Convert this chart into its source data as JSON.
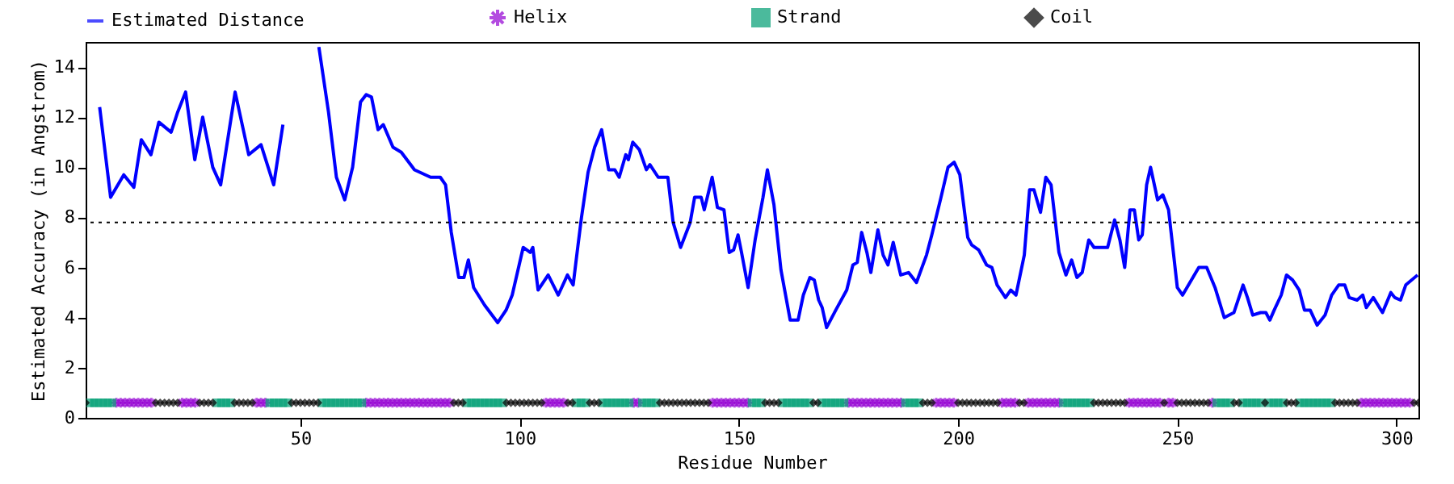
{
  "chart_data": {
    "type": "line",
    "xlabel": "Residue Number",
    "ylabel": "Estimated Accuracy (in Angstrom)",
    "xlim": [
      1,
      305
    ],
    "xticks": [
      50,
      100,
      150,
      200,
      250,
      300
    ],
    "ylim": [
      0,
      15
    ],
    "yticks": [
      0,
      2,
      4,
      6,
      8,
      10,
      12,
      14
    ],
    "grid": false,
    "legend": "top",
    "ref_lines": [
      {
        "axis": "y",
        "value": 7.8,
        "color": "#000000",
        "line_style": "dotted"
      }
    ],
    "series": [
      {
        "name": "Estimated Distance",
        "type": "line",
        "color": "#0000ff",
        "marker": "none",
        "x": [
          4.2,
          6.7,
          9.7,
          12,
          13.7,
          15.9,
          17.7,
          20.5,
          22,
          23.8,
          25.9,
          27.7,
          30,
          31.8,
          35.1,
          38.2,
          41,
          43.9,
          46,
          51,
          54.2,
          56.4,
          58.2,
          60.1,
          61.9,
          63.7,
          65,
          66.2,
          67.7,
          68.9,
          71.1,
          73,
          76,
          79.7,
          81.9,
          83.1,
          84.4,
          86.1,
          87.3,
          88.3,
          89.5,
          92,
          95,
          96.9,
          98.3,
          100.8,
          102.4,
          103,
          104.2,
          106.5,
          108.8,
          110.9,
          112.2,
          113.1,
          114.1,
          115.6,
          117.1,
          118.7,
          120.3,
          121.7,
          122.7,
          124.2,
          124.8,
          125.8,
          127.3,
          128.9,
          129.7,
          131.6,
          133.8,
          135,
          136.7,
          138.9,
          139.9,
          141.4,
          142.1,
          143.9,
          145.1,
          146.6,
          147.8,
          148.8,
          149.8,
          150.6,
          152.1,
          153.7,
          155.5,
          156.5,
          158,
          159.6,
          161.7,
          163.5,
          164.7,
          166.2,
          167.2,
          168.2,
          169,
          170,
          172.1,
          174.6,
          176,
          177,
          178,
          179.2,
          180.1,
          181.7,
          182.9,
          184,
          185.2,
          186.9,
          188.7,
          190.5,
          192.8,
          194,
          196.1,
          197.7,
          199.1,
          200.4,
          202.2,
          203.1,
          204.7,
          206.5,
          207.7,
          208.9,
          210.8,
          212,
          213.2,
          215.1,
          216.3,
          217.3,
          218.8,
          220,
          221.2,
          223,
          224.6,
          225.9,
          227.1,
          228.3,
          229.8,
          231,
          234.1,
          235.7,
          236.9,
          238,
          239.2,
          240.2,
          241.2,
          242,
          243,
          243.9,
          245.5,
          246.7,
          248,
          249.1,
          250,
          251.2,
          254.9,
          256.7,
          258.6,
          260.7,
          262.9,
          265,
          266,
          267.2,
          269,
          270.2,
          271.1,
          272.1,
          273.7,
          274.9,
          276.3,
          277.8,
          279,
          280.3,
          281.9,
          283.7,
          285.2,
          286.8,
          288.2,
          289.2,
          291,
          292.3,
          293.1,
          294.7,
          296.8,
          298.7,
          299.6,
          300.9,
          302.1,
          304.8
        ],
        "values": [
          12.4,
          8.8,
          9.7,
          9.2,
          11.1,
          10.5,
          11.8,
          11.4,
          12.2,
          13.0,
          10.3,
          12.0,
          10.0,
          9.3,
          13.0,
          10.5,
          10.9,
          9.3,
          11.7,
          null,
          14.8,
          12.2,
          9.6,
          8.7,
          10.0,
          12.6,
          12.9,
          12.8,
          11.5,
          11.7,
          10.8,
          10.6,
          9.9,
          9.6,
          9.6,
          9.3,
          7.4,
          5.6,
          5.6,
          6.3,
          5.2,
          4.5,
          3.8,
          4.3,
          4.9,
          6.8,
          6.6,
          6.8,
          5.1,
          5.7,
          4.9,
          5.7,
          5.3,
          6.6,
          8.0,
          9.8,
          10.8,
          11.5,
          9.9,
          9.9,
          9.6,
          10.5,
          10.3,
          11.0,
          10.7,
          9.9,
          10.1,
          9.6,
          9.6,
          7.8,
          6.8,
          7.8,
          8.8,
          8.8,
          8.3,
          9.6,
          8.4,
          8.3,
          6.6,
          6.7,
          7.3,
          6.6,
          5.2,
          7.1,
          8.8,
          9.9,
          8.5,
          5.9,
          3.9,
          3.9,
          4.9,
          5.6,
          5.5,
          4.7,
          4.4,
          3.6,
          4.3,
          5.1,
          6.1,
          6.2,
          7.4,
          6.6,
          5.8,
          7.5,
          6.5,
          6.1,
          7.0,
          5.7,
          5.8,
          5.4,
          6.5,
          7.3,
          8.8,
          10.0,
          10.2,
          9.7,
          7.2,
          6.9,
          6.7,
          6.1,
          6.0,
          5.3,
          4.8,
          5.1,
          4.9,
          6.5,
          9.1,
          9.1,
          8.2,
          9.6,
          9.3,
          6.6,
          5.7,
          6.3,
          5.6,
          5.8,
          7.1,
          6.8,
          6.8,
          7.9,
          7.1,
          6.0,
          8.3,
          8.3,
          7.1,
          7.3,
          9.3,
          10.0,
          8.7,
          8.9,
          8.3,
          6.6,
          5.2,
          4.9,
          6.0,
          6.0,
          5.2,
          4.0,
          4.2,
          5.3,
          4.8,
          4.1,
          4.2,
          4.2,
          3.9,
          4.3,
          4.9,
          5.7,
          5.5,
          5.1,
          4.3,
          4.3,
          3.7,
          4.1,
          4.9,
          5.3,
          5.3,
          4.8,
          4.7,
          4.9,
          4.4,
          4.8,
          4.2,
          5.0,
          4.8,
          4.7,
          5.3,
          5.7
        ]
      },
      {
        "name": "Helix",
        "type": "scatter",
        "color": "#9400d3",
        "marker": "cross",
        "x": [
          8,
          9,
          10,
          11,
          12,
          13,
          14,
          15,
          16,
          23,
          24,
          25,
          26,
          40,
          41,
          42,
          65,
          66,
          67,
          68,
          69,
          70,
          71,
          72,
          73,
          74,
          75,
          76,
          77,
          78,
          79,
          80,
          81,
          82,
          83,
          84,
          106,
          107,
          108,
          109,
          110,
          126,
          127,
          144,
          145,
          146,
          147,
          148,
          149,
          150,
          151,
          152,
          175,
          176,
          177,
          178,
          179,
          180,
          181,
          182,
          183,
          184,
          185,
          186,
          187,
          195,
          196,
          197,
          198,
          199,
          210,
          211,
          212,
          213,
          216,
          217,
          218,
          219,
          220,
          221,
          222,
          223,
          239,
          240,
          241,
          242,
          243,
          244,
          245,
          246,
          248,
          249,
          258,
          292,
          293,
          294,
          295,
          296,
          297,
          298,
          299,
          300,
          301,
          302,
          303
        ],
        "values": [
          0.6,
          0.6,
          0.6,
          0.6,
          0.6,
          0.6,
          0.6,
          0.6,
          0.6,
          0.6,
          0.6,
          0.6,
          0.6,
          0.6,
          0.6,
          0.6,
          0.6,
          0.6,
          0.6,
          0.6,
          0.6,
          0.6,
          0.6,
          0.6,
          0.6,
          0.6,
          0.6,
          0.6,
          0.6,
          0.6,
          0.6,
          0.6,
          0.6,
          0.6,
          0.6,
          0.6,
          0.6,
          0.6,
          0.6,
          0.6,
          0.6,
          0.6,
          0.6,
          0.6,
          0.6,
          0.6,
          0.6,
          0.6,
          0.6,
          0.6,
          0.6,
          0.6,
          0.6,
          0.6,
          0.6,
          0.6,
          0.6,
          0.6,
          0.6,
          0.6,
          0.6,
          0.6,
          0.6,
          0.6,
          0.6,
          0.6,
          0.6,
          0.6,
          0.6,
          0.6,
          0.6,
          0.6,
          0.6,
          0.6,
          0.6,
          0.6,
          0.6,
          0.6,
          0.6,
          0.6,
          0.6,
          0.6,
          0.6,
          0.6,
          0.6,
          0.6,
          0.6,
          0.6,
          0.6,
          0.6,
          0.6,
          0.6,
          0.6,
          0.6,
          0.6,
          0.6,
          0.6,
          0.6,
          0.6,
          0.6,
          0.6,
          0.6,
          0.6,
          0.6,
          0.6
        ]
      },
      {
        "name": "Strand",
        "type": "scatter",
        "color": "#009e73",
        "marker": "square",
        "x": [
          2,
          3,
          4,
          5,
          6,
          7,
          31,
          32,
          33,
          34,
          43,
          44,
          45,
          46,
          47,
          55,
          56,
          57,
          58,
          59,
          60,
          61,
          62,
          63,
          64,
          88,
          89,
          90,
          91,
          92,
          93,
          94,
          95,
          96,
          113,
          114,
          115,
          119,
          120,
          121,
          122,
          123,
          124,
          125,
          128,
          129,
          130,
          131,
          153,
          154,
          155,
          160,
          161,
          162,
          163,
          164,
          165,
          166,
          169,
          170,
          171,
          172,
          173,
          174,
          188,
          189,
          190,
          191,
          224,
          225,
          226,
          227,
          228,
          229,
          230,
          259,
          260,
          261,
          262,
          265,
          266,
          267,
          268,
          269,
          271,
          272,
          273,
          274,
          278,
          279,
          280,
          281,
          282,
          283,
          284,
          285
        ],
        "values": [
          0.6,
          0.6,
          0.6,
          0.6,
          0.6,
          0.6,
          0.6,
          0.6,
          0.6,
          0.6,
          0.6,
          0.6,
          0.6,
          0.6,
          0.6,
          0.6,
          0.6,
          0.6,
          0.6,
          0.6,
          0.6,
          0.6,
          0.6,
          0.6,
          0.6,
          0.6,
          0.6,
          0.6,
          0.6,
          0.6,
          0.6,
          0.6,
          0.6,
          0.6,
          0.6,
          0.6,
          0.6,
          0.6,
          0.6,
          0.6,
          0.6,
          0.6,
          0.6,
          0.6,
          0.6,
          0.6,
          0.6,
          0.6,
          0.6,
          0.6,
          0.6,
          0.6,
          0.6,
          0.6,
          0.6,
          0.6,
          0.6,
          0.6,
          0.6,
          0.6,
          0.6,
          0.6,
          0.6,
          0.6,
          0.6,
          0.6,
          0.6,
          0.6,
          0.6,
          0.6,
          0.6,
          0.6,
          0.6,
          0.6,
          0.6,
          0.6,
          0.6,
          0.6,
          0.6,
          0.6,
          0.6,
          0.6,
          0.6,
          0.6,
          0.6,
          0.6,
          0.6,
          0.6,
          0.6,
          0.6,
          0.6,
          0.6,
          0.6,
          0.6,
          0.6,
          0.6
        ]
      },
      {
        "name": "Coil",
        "type": "scatter",
        "color": "#000000",
        "marker": "diamond",
        "x": [
          1,
          17,
          18,
          19,
          20,
          21,
          22,
          27,
          28,
          29,
          30,
          35,
          36,
          37,
          38,
          39,
          48,
          49,
          50,
          51,
          52,
          53,
          54,
          85,
          86,
          87,
          97,
          98,
          99,
          100,
          101,
          102,
          103,
          104,
          105,
          111,
          112,
          116,
          117,
          118,
          132,
          133,
          134,
          135,
          136,
          137,
          138,
          139,
          140,
          141,
          142,
          143,
          156,
          157,
          158,
          159,
          167,
          168,
          192,
          193,
          194,
          200,
          201,
          202,
          203,
          204,
          205,
          206,
          207,
          208,
          209,
          214,
          215,
          231,
          232,
          233,
          234,
          235,
          236,
          237,
          238,
          247,
          250,
          251,
          252,
          253,
          254,
          255,
          256,
          257,
          263,
          264,
          270,
          275,
          276,
          277,
          286,
          287,
          288,
          289,
          290,
          291,
          304,
          305
        ],
        "values": [
          0.6,
          0.6,
          0.6,
          0.6,
          0.6,
          0.6,
          0.6,
          0.6,
          0.6,
          0.6,
          0.6,
          0.6,
          0.6,
          0.6,
          0.6,
          0.6,
          0.6,
          0.6,
          0.6,
          0.6,
          0.6,
          0.6,
          0.6,
          0.6,
          0.6,
          0.6,
          0.6,
          0.6,
          0.6,
          0.6,
          0.6,
          0.6,
          0.6,
          0.6,
          0.6,
          0.6,
          0.6,
          0.6,
          0.6,
          0.6,
          0.6,
          0.6,
          0.6,
          0.6,
          0.6,
          0.6,
          0.6,
          0.6,
          0.6,
          0.6,
          0.6,
          0.6,
          0.6,
          0.6,
          0.6,
          0.6,
          0.6,
          0.6,
          0.6,
          0.6,
          0.6,
          0.6,
          0.6,
          0.6,
          0.6,
          0.6,
          0.6,
          0.6,
          0.6,
          0.6,
          0.6,
          0.6,
          0.6,
          0.6,
          0.6,
          0.6,
          0.6,
          0.6,
          0.6,
          0.6,
          0.6,
          0.6,
          0.6,
          0.6,
          0.6,
          0.6,
          0.6,
          0.6,
          0.6,
          0.6,
          0.6,
          0.6,
          0.6,
          0.6,
          0.6,
          0.6,
          0.6,
          0.6,
          0.6,
          0.6,
          0.6,
          0.6,
          0.6,
          0.6
        ]
      }
    ]
  }
}
